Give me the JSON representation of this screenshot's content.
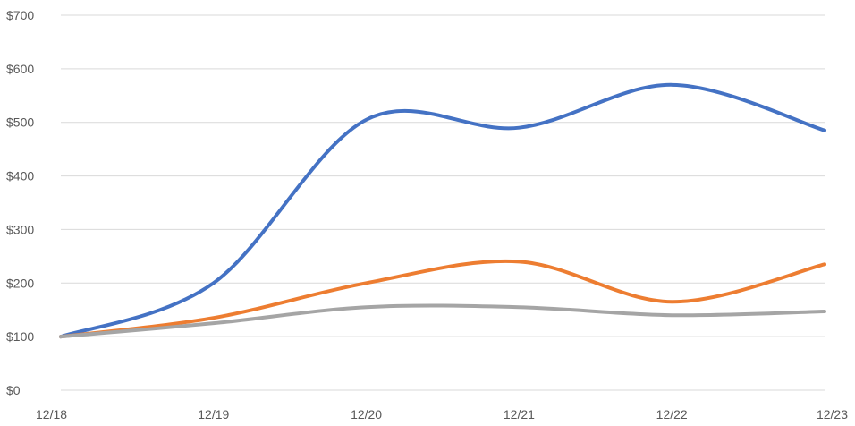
{
  "chart_data": {
    "type": "line",
    "title": "",
    "xlabel": "",
    "ylabel": "",
    "categories": [
      "12/18",
      "12/19",
      "12/20",
      "12/21",
      "12/22",
      "12/23"
    ],
    "ylim": [
      0,
      700
    ],
    "y_ticks": [
      {
        "value": 0,
        "label": "$0"
      },
      {
        "value": 100,
        "label": "$100"
      },
      {
        "value": 200,
        "label": "$200"
      },
      {
        "value": 300,
        "label": "$300"
      },
      {
        "value": 400,
        "label": "$400"
      },
      {
        "value": 500,
        "label": "$500"
      },
      {
        "value": 600,
        "label": "$600"
      },
      {
        "value": 700,
        "label": "$700"
      }
    ],
    "grid": true,
    "smooth": true,
    "legend": "none",
    "series": [
      {
        "color": "#4472c4",
        "values": [
          100,
          200,
          505,
          490,
          570,
          485
        ]
      },
      {
        "color": "#ed7d31",
        "values": [
          100,
          135,
          200,
          240,
          165,
          235
        ]
      },
      {
        "color": "#a5a5a5",
        "values": [
          100,
          125,
          155,
          155,
          140,
          147
        ]
      }
    ]
  }
}
